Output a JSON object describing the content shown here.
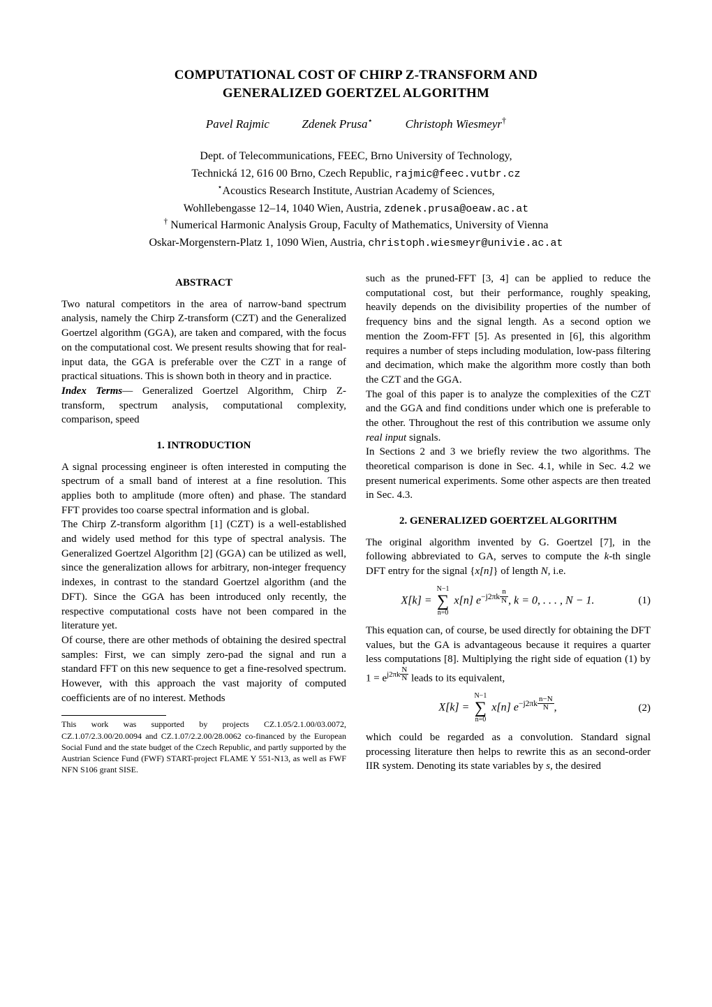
{
  "title_line1": "COMPUTATIONAL COST OF CHIRP Z-TRANSFORM AND",
  "title_line2": "GENERALIZED GOERTZEL ALGORITHM",
  "authors": {
    "a1": "Pavel Rajmic",
    "a2": "Zdenek Prusa",
    "a2_mark": "⋆",
    "a3": "Christoph Wiesmeyr",
    "a3_mark": "†"
  },
  "affil": {
    "l1": "Dept. of Telecommunications, FEEC, Brno University of Technology,",
    "l2a": "Technická 12, 616 00 Brno, Czech Republic, ",
    "l2b": "rajmic@feec.vutbr.cz",
    "l3_mark": "⋆",
    "l3": "Acoustics Research Institute, Austrian Academy of Sciences,",
    "l4a": "Wohllebengasse 12–14, 1040 Wien, Austria, ",
    "l4b": "zdenek.prusa@oeaw.ac.at",
    "l5_mark": "†",
    "l5": " Numerical Harmonic Analysis Group, Faculty of Mathematics, University of Vienna",
    "l6a": "Oskar-Morgenstern-Platz 1, 1090 Wien, Austria, ",
    "l6b": "christoph.wiesmeyr@univie.ac.at"
  },
  "abstract_head": "ABSTRACT",
  "abstract_body": "Two natural competitors in the area of narrow-band spectrum analysis, namely the Chirp Z-transform (CZT) and the Generalized Goertzel algorithm (GGA), are taken and compared, with the focus on the computational cost. We present results showing that for real-input data, the GGA is preferable over the CZT in a range of practical situations. This is shown both in theory and in practice.",
  "index_terms_label": "Index Terms",
  "index_terms_dash": "— ",
  "index_terms_body": "Generalized Goertzel Algorithm, Chirp Z-transform, spectrum analysis, computational complexity, comparison, speed",
  "sec1_head": "1. INTRODUCTION",
  "sec1_p1": "A signal processing engineer is often interested in computing the spectrum of a small band of interest at a fine resolution. This applies both to amplitude (more often) and phase. The standard FFT provides too coarse spectral information and is global.",
  "sec1_p2": "The Chirp Z-transform algorithm [1] (CZT) is a well-established and widely used method for this type of spectral analysis. The Generalized Goertzel Algorithm [2] (GGA) can be utilized as well, since the generalization allows for arbitrary, non-integer frequency indexes, in contrast to the standard Goertzel algorithm (and the DFT). Since the GGA has been introduced only recently, the respective computational costs have not been compared in the literature yet.",
  "sec1_p3": "Of course, there are other methods of obtaining the desired spectral samples: First, we can simply zero-pad the signal and run a standard FFT on this new sequence to get a fine-resolved spectrum. However, with this approach the vast majority of computed coefficients are of no interest. Methods",
  "footnote": "This work was supported by projects CZ.1.05/2.1.00/03.0072, CZ.1.07/2.3.00/20.0094 and CZ.1.07/2.2.00/28.0062 co-financed by the European Social Fund and the state budget of the Czech Republic, and partly supported by the Austrian Science Fund (FWF) START-project FLAME Y 551-N13, as well as FWF NFN S106 grant SISE.",
  "col2_p1": "such as the pruned-FFT [3, 4] can be applied to reduce the computational cost, but their performance, roughly speaking, heavily depends on the divisibility properties of the number of frequency bins and the signal length. As a second option we mention the Zoom-FFT [5]. As presented in [6], this algorithm requires a number of steps including modulation, low-pass filtering and decimation, which make the algorithm more costly than both the CZT and the GGA.",
  "col2_p2": "The goal of this paper is to analyze the complexities of the CZT and the GGA and find conditions under which one is preferable to the other. Throughout the rest of this contribution we assume only ",
  "col2_p2_ital": "real input",
  "col2_p2_end": " signals.",
  "col2_p3": "In Sections 2 and 3 we briefly review the two algorithms. The theoretical comparison is done in Sec. 4.1, while in Sec. 4.2 we present numerical experiments. Some other aspects are then treated in Sec. 4.3.",
  "sec2_head": "2. GENERALIZED GOERTZEL ALGORITHM",
  "sec2_p1a": "The original algorithm invented by G. Goertzel [7], in the following abbreviated to GA, serves to compute the ",
  "sec2_p1_k": "k",
  "sec2_p1b": "-th single DFT entry for the signal {",
  "sec2_p1_xn": "x[n]",
  "sec2_p1c": "} of length ",
  "sec2_p1_N": "N",
  "sec2_p1d": ", i.e.",
  "eq1": {
    "lhs": "X[k] = ",
    "sum_top": "N−1",
    "sum_bot": "n=0",
    "term_a": " x[n] e",
    "exp_pre": "−j2πk",
    "frac_num": "n",
    "frac_den": "N",
    "tail": ",    k = 0, . . . , N − 1.",
    "num": "(1)"
  },
  "sec2_p2a": "This equation can, of course, be used directly for obtaining the DFT values, but the GA is advantageous because it requires a quarter less computations [8]. Multiplying the right side of equation (1) by 1 = e",
  "sec2_p2_exp_pre": "j2πk",
  "sec2_p2_frac_num": "N",
  "sec2_p2_frac_den": "N",
  "sec2_p2b": " leads to its equivalent,",
  "eq2": {
    "lhs": "X[k] = ",
    "sum_top": "N−1",
    "sum_bot": "n=0",
    "term_a": " x[n] e",
    "exp_pre": "−j2πk",
    "frac_num": "n−N",
    "frac_den": "N",
    "tail": ",",
    "num": "(2)"
  },
  "sec2_p3a": "which could be regarded as a convolution. Standard signal processing literature then helps to rewrite this as an second-order IIR system. Denoting its state variables by ",
  "sec2_p3_s": "s",
  "sec2_p3b": ", the desired"
}
